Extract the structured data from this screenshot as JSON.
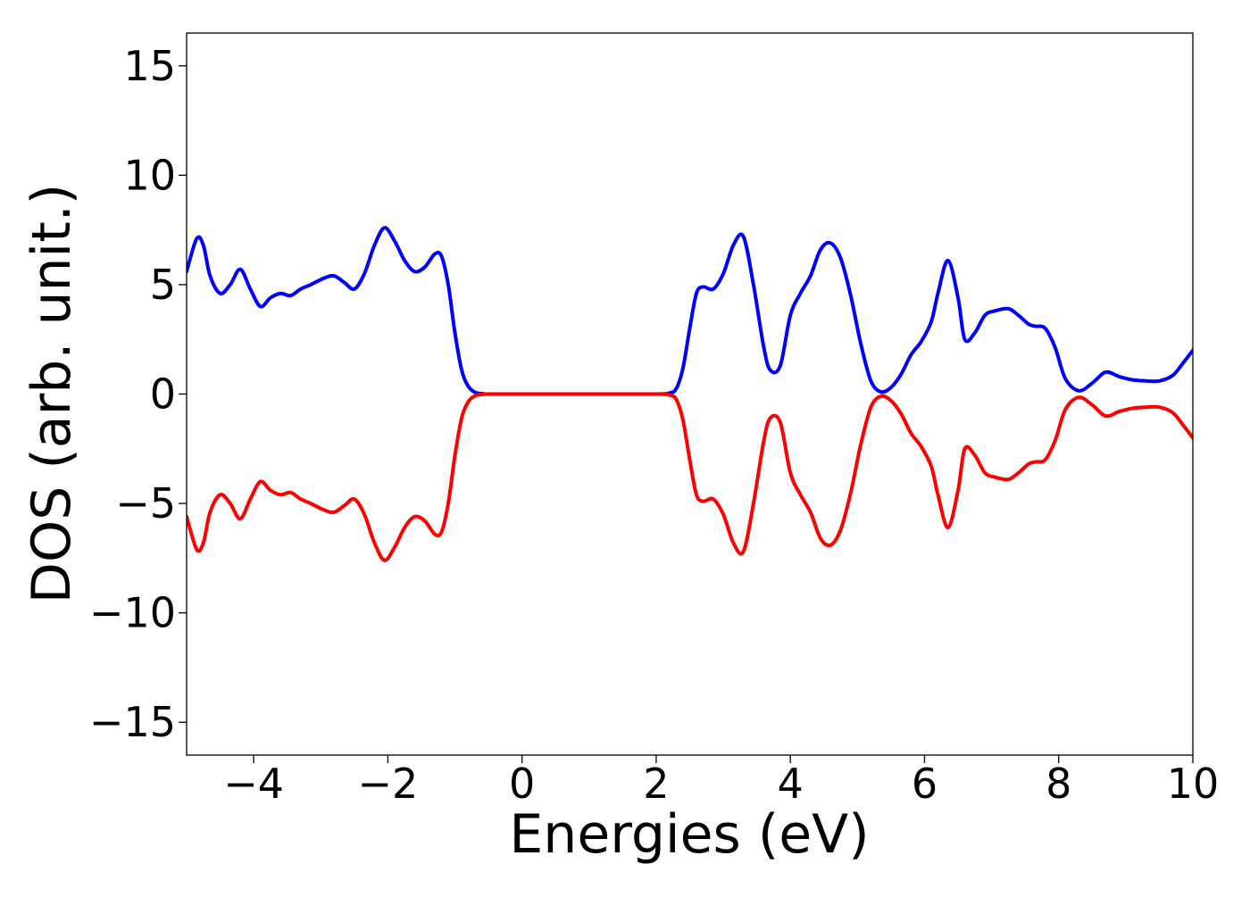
{
  "chart_data": {
    "type": "line",
    "xlabel": "Energies (eV)",
    "ylabel": "DOS (arb. unit.)",
    "xlim": [
      -5,
      10
    ],
    "ylim": [
      -16.5,
      16.5
    ],
    "xticks": [
      -4,
      -2,
      0,
      2,
      4,
      6,
      8,
      10
    ],
    "xtick_labels": [
      "−4",
      "−2",
      "0",
      "2",
      "4",
      "6",
      "8",
      "10"
    ],
    "yticks": [
      -15,
      -10,
      -5,
      0,
      5,
      10,
      15
    ],
    "ytick_labels": [
      "−15",
      "−10",
      "−5",
      "0",
      "5",
      "10",
      "15"
    ],
    "grid": false,
    "legend": "none",
    "series": [
      {
        "color": "#0000ff",
        "x": [
          -5.0,
          -4.85,
          -4.75,
          -4.65,
          -4.5,
          -4.35,
          -4.2,
          -4.05,
          -3.9,
          -3.75,
          -3.6,
          -3.45,
          -3.3,
          -3.15,
          -2.95,
          -2.8,
          -2.65,
          -2.5,
          -2.35,
          -2.2,
          -2.05,
          -1.9,
          -1.75,
          -1.6,
          -1.45,
          -1.3,
          -1.2,
          -1.1,
          -1.0,
          -0.9,
          -0.8,
          -0.7,
          -0.6,
          -0.5,
          0.0,
          1.0,
          2.0,
          2.2,
          2.3,
          2.4,
          2.5,
          2.6,
          2.7,
          2.85,
          3.0,
          3.15,
          3.3,
          3.45,
          3.6,
          3.7,
          3.85,
          4.0,
          4.15,
          4.3,
          4.45,
          4.6,
          4.75,
          4.9,
          5.05,
          5.2,
          5.35,
          5.5,
          5.65,
          5.8,
          5.95,
          6.1,
          6.2,
          6.35,
          6.5,
          6.6,
          6.75,
          6.9,
          7.05,
          7.25,
          7.4,
          7.55,
          7.65,
          7.8,
          7.95,
          8.1,
          8.3,
          8.5,
          8.7,
          8.9,
          9.1,
          9.3,
          9.5,
          9.7,
          9.85,
          10.0
        ],
        "y": [
          5.6,
          7.1,
          6.8,
          5.4,
          4.6,
          5.0,
          5.7,
          4.8,
          4.0,
          4.4,
          4.6,
          4.5,
          4.8,
          5.0,
          5.3,
          5.4,
          5.1,
          4.8,
          5.5,
          6.8,
          7.6,
          7.0,
          6.1,
          5.6,
          5.8,
          6.4,
          6.3,
          5.0,
          2.8,
          1.1,
          0.35,
          0.08,
          0.02,
          0.0,
          0.0,
          0.0,
          0.0,
          0.05,
          0.25,
          1.2,
          3.0,
          4.6,
          4.9,
          4.8,
          5.5,
          6.8,
          7.2,
          5.0,
          2.2,
          1.1,
          1.3,
          3.6,
          4.6,
          5.4,
          6.6,
          6.9,
          6.2,
          4.5,
          2.3,
          0.6,
          0.1,
          0.3,
          0.9,
          1.8,
          2.4,
          3.3,
          4.6,
          6.1,
          4.4,
          2.5,
          2.8,
          3.6,
          3.8,
          3.9,
          3.6,
          3.2,
          3.1,
          3.0,
          2.1,
          0.7,
          0.15,
          0.5,
          1.0,
          0.8,
          0.65,
          0.6,
          0.6,
          0.85,
          1.4,
          2.0
        ]
      },
      {
        "color": "#ff0000",
        "x": [
          -5.0,
          -4.85,
          -4.75,
          -4.65,
          -4.5,
          -4.35,
          -4.2,
          -4.05,
          -3.9,
          -3.75,
          -3.6,
          -3.45,
          -3.3,
          -3.15,
          -2.95,
          -2.8,
          -2.65,
          -2.5,
          -2.35,
          -2.2,
          -2.05,
          -1.9,
          -1.75,
          -1.6,
          -1.45,
          -1.3,
          -1.2,
          -1.1,
          -1.0,
          -0.9,
          -0.8,
          -0.7,
          -0.6,
          -0.5,
          0.0,
          1.0,
          2.0,
          2.2,
          2.3,
          2.4,
          2.5,
          2.6,
          2.7,
          2.85,
          3.0,
          3.15,
          3.3,
          3.45,
          3.6,
          3.7,
          3.85,
          4.0,
          4.15,
          4.3,
          4.45,
          4.6,
          4.75,
          4.9,
          5.05,
          5.2,
          5.35,
          5.5,
          5.65,
          5.8,
          5.95,
          6.1,
          6.2,
          6.35,
          6.5,
          6.6,
          6.75,
          6.9,
          7.05,
          7.25,
          7.4,
          7.55,
          7.65,
          7.8,
          7.95,
          8.1,
          8.3,
          8.5,
          8.7,
          8.9,
          9.1,
          9.3,
          9.5,
          9.7,
          9.85,
          10.0
        ],
        "y": [
          -5.6,
          -7.1,
          -6.8,
          -5.4,
          -4.6,
          -5.0,
          -5.7,
          -4.8,
          -4.0,
          -4.4,
          -4.6,
          -4.5,
          -4.8,
          -5.0,
          -5.3,
          -5.4,
          -5.1,
          -4.8,
          -5.5,
          -6.8,
          -7.6,
          -7.0,
          -6.1,
          -5.6,
          -5.8,
          -6.4,
          -6.3,
          -5.0,
          -2.8,
          -1.1,
          -0.35,
          -0.08,
          -0.02,
          0.0,
          0.0,
          0.0,
          0.0,
          -0.05,
          -0.25,
          -1.2,
          -3.0,
          -4.6,
          -4.9,
          -4.8,
          -5.5,
          -6.8,
          -7.2,
          -5.0,
          -2.2,
          -1.1,
          -1.3,
          -3.6,
          -4.6,
          -5.4,
          -6.6,
          -6.9,
          -6.2,
          -4.5,
          -2.3,
          -0.6,
          -0.1,
          -0.3,
          -0.9,
          -1.8,
          -2.4,
          -3.3,
          -4.6,
          -6.1,
          -4.4,
          -2.5,
          -2.8,
          -3.6,
          -3.8,
          -3.9,
          -3.6,
          -3.2,
          -3.1,
          -3.0,
          -2.1,
          -0.7,
          -0.15,
          -0.5,
          -1.0,
          -0.8,
          -0.65,
          -0.6,
          -0.6,
          -0.85,
          -1.4,
          -2.0
        ]
      }
    ]
  }
}
